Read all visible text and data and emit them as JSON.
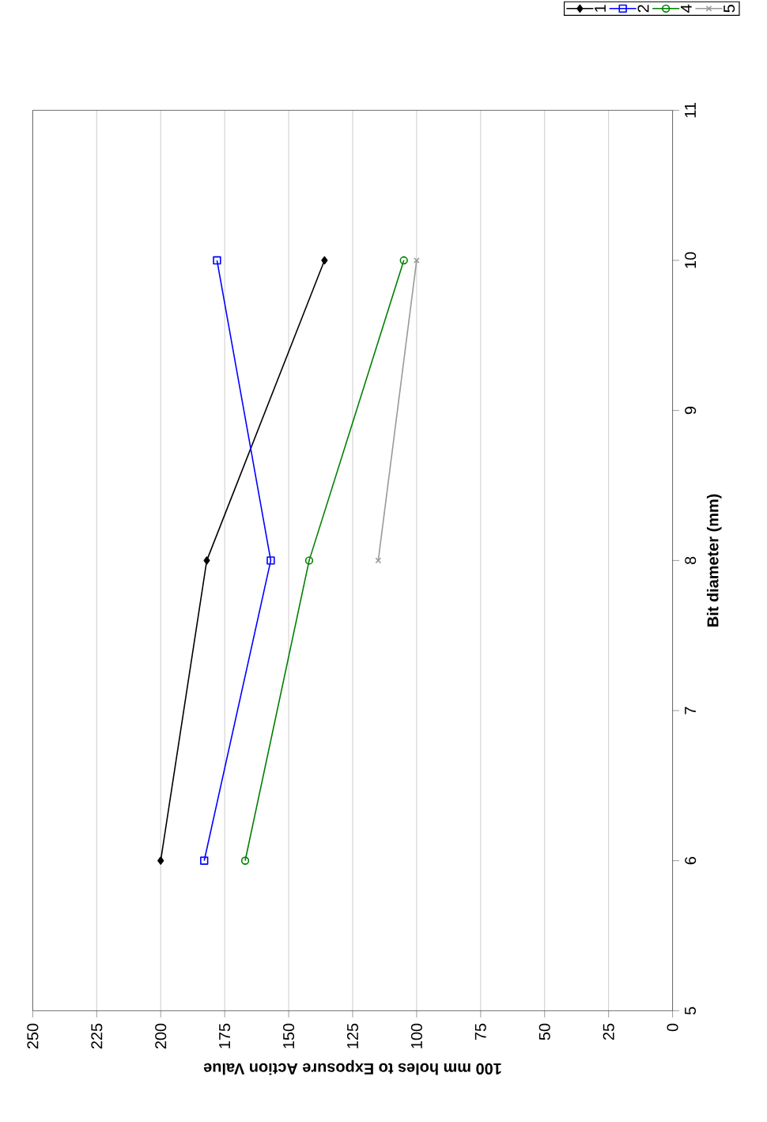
{
  "chart_data": {
    "type": "line",
    "xlabel": "100 mm holes to Exposure Action Value",
    "ylabel": "Bit diameter (mm)",
    "series": [
      {
        "name": "1",
        "color": "#000000",
        "marker": "diamond",
        "x": [
          200,
          182,
          136
        ],
        "values": [
          6,
          8,
          10
        ]
      },
      {
        "name": "2",
        "color": "#0000ff",
        "marker": "square",
        "x": [
          183,
          157,
          178
        ],
        "values": [
          6,
          8,
          10
        ]
      },
      {
        "name": "4",
        "color": "#008000",
        "marker": "circle",
        "x": [
          167,
          142,
          105
        ],
        "values": [
          6,
          8,
          10
        ]
      },
      {
        "name": "5",
        "color": "#999999",
        "marker": "cross",
        "x": [
          115,
          100
        ],
        "values": [
          8,
          10
        ]
      }
    ],
    "xlim": [
      250,
      0
    ],
    "xticks": [
      0,
      25,
      50,
      75,
      100,
      125,
      150,
      175,
      200,
      225,
      250
    ],
    "ylim": [
      5,
      11
    ],
    "yticks": [
      5,
      6,
      7,
      8,
      9,
      10,
      11
    ],
    "grid": "x",
    "legend": "top right",
    "line_style": "solid"
  }
}
